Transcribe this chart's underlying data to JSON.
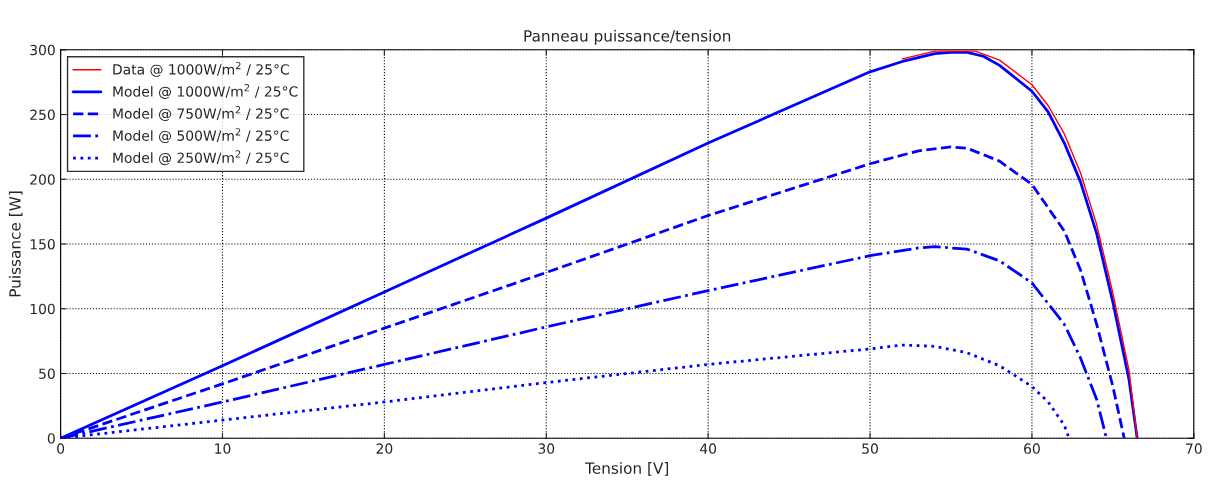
{
  "chart_data": {
    "type": "line",
    "title": "Panneau puissance/tension",
    "xlabel": "Tension [V]",
    "ylabel": "Puissance [W]",
    "xlim": [
      0,
      70
    ],
    "xticks": [
      0,
      10,
      20,
      30,
      40,
      50,
      60,
      70
    ],
    "ylim": [
      0,
      300
    ],
    "yticks": [
      0,
      50,
      100,
      150,
      200,
      250,
      300
    ],
    "grid": true,
    "legend": "top left",
    "marker": "none",
    "series": [
      {
        "name": "Data @ 1000W/m$^{2}$ / 25°C",
        "color": "#ff0000",
        "line_style": "solid",
        "x": [
          52,
          54,
          56.5,
          58,
          60,
          61,
          62,
          63,
          64,
          65,
          66,
          66.5
        ],
        "values": [
          293,
          299,
          299,
          292,
          273,
          257,
          235,
          205,
          165,
          112,
          52,
          0
        ]
      },
      {
        "name": "Model @ 1000W/m$^{2}$ / 25°C",
        "color": "#0000ff",
        "line_style": "solid",
        "x": [
          0,
          10,
          20,
          30,
          40,
          50,
          52,
          54,
          55,
          56,
          57,
          58,
          60,
          61,
          62,
          63,
          64,
          65,
          66,
          66.5
        ],
        "values": [
          0,
          56,
          113,
          170,
          228,
          283,
          291,
          297,
          298,
          298,
          295,
          288,
          268,
          252,
          228,
          198,
          158,
          105,
          45,
          0
        ]
      },
      {
        "name": "Model @ 750W/m$^{2}$ / 25°C",
        "color": "#0000ff",
        "line_style": "dashed",
        "x": [
          0,
          10,
          20,
          30,
          40,
          50,
          53,
          55,
          56,
          58,
          60,
          62,
          63,
          64,
          65,
          65.7
        ],
        "values": [
          0,
          42,
          85,
          128,
          172,
          212,
          222,
          225,
          224,
          214,
          196,
          160,
          130,
          88,
          40,
          0
        ]
      },
      {
        "name": "Model @ 500W/m$^{2}$ / 25°C",
        "color": "#0000ff",
        "line_style": "dashdot",
        "x": [
          0,
          10,
          20,
          30,
          40,
          50,
          53,
          54,
          56,
          58,
          60,
          62,
          63,
          64,
          64.6
        ],
        "values": [
          0,
          28,
          57,
          86,
          114,
          141,
          147,
          148,
          146,
          137,
          120,
          88,
          62,
          30,
          0
        ]
      },
      {
        "name": "Model @ 250W/m$^{2}$ / 25°C",
        "color": "#0000ff",
        "line_style": "dotted",
        "x": [
          0,
          10,
          20,
          30,
          40,
          50,
          52,
          54,
          56,
          58,
          60,
          61,
          62,
          62.3
        ],
        "values": [
          0,
          14,
          28,
          43,
          57,
          69,
          72,
          71,
          66,
          56,
          40,
          28,
          10,
          0
        ]
      }
    ]
  }
}
